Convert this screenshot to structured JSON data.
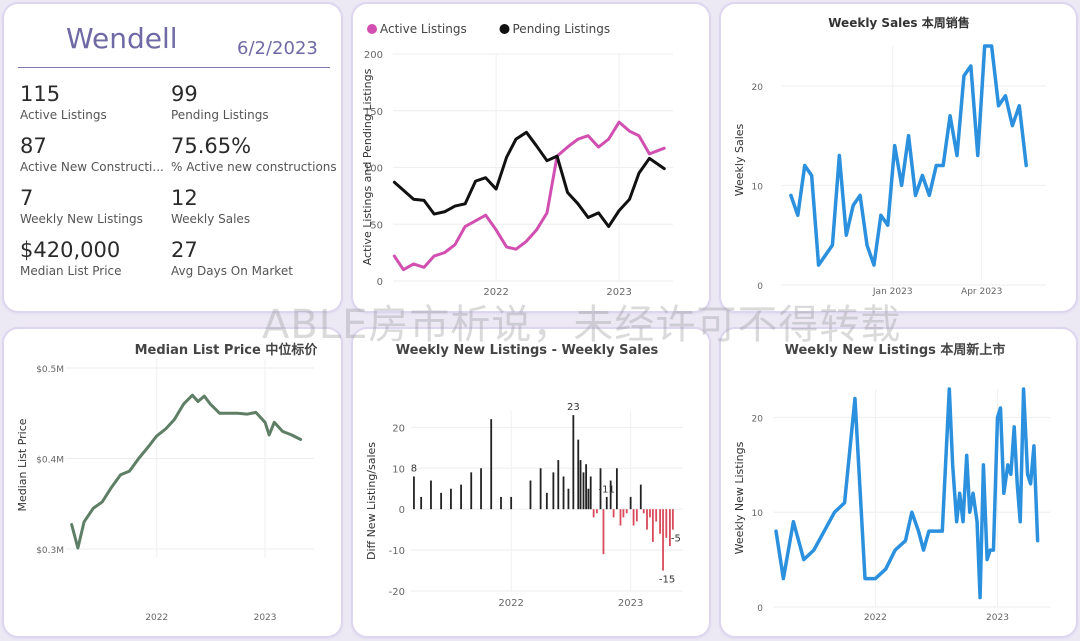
{
  "kpi": {
    "title": "Wendell",
    "date": "6/2/2023",
    "items": [
      {
        "value": "115",
        "label": "Active Listings"
      },
      {
        "value": "99",
        "label": "Pending Listings"
      },
      {
        "value": "87",
        "label": "Active New Constructi..."
      },
      {
        "value": "75.65%",
        "label": "% Active new constructions"
      },
      {
        "value": "7",
        "label": "Weekly New Listings"
      },
      {
        "value": "12",
        "label": "Weekly Sales"
      },
      {
        "value": "$420,000",
        "label": "Median List Price"
      },
      {
        "value": "27",
        "label": "Avg Days On Market"
      }
    ]
  },
  "watermark": "ABLE房市析说，未经许可不得转载",
  "colors": {
    "active": "#d14fb0",
    "pending": "#111111",
    "blue": "#2b90de",
    "green": "#5e7f66",
    "pos_bar": "#222222",
    "neg_bar": "#d94a5a",
    "kpi_accent": "#6f6aa6"
  },
  "chart_data": [
    {
      "type": "line",
      "title": "",
      "xlabel": "",
      "ylabel": "Active Listings and Pending Listings",
      "ylim": [
        0,
        200
      ],
      "yticks": [
        "0",
        "50",
        "100",
        "150",
        "200"
      ],
      "xticks": [
        "2022",
        "2023"
      ],
      "x_range": [
        "2021-03-01",
        "2023-06-10"
      ],
      "legend": "top-left",
      "series": [
        {
          "name": "Active Listings",
          "color": "#d14fb0",
          "points": [
            [
              "2021-03-05",
              22
            ],
            [
              "2021-04-01",
              10
            ],
            [
              "2021-05-01",
              15
            ],
            [
              "2021-06-01",
              12
            ],
            [
              "2021-07-01",
              22
            ],
            [
              "2021-08-01",
              25
            ],
            [
              "2021-09-01",
              32
            ],
            [
              "2021-10-01",
              48
            ],
            [
              "2021-11-01",
              53
            ],
            [
              "2021-12-01",
              58
            ],
            [
              "2022-01-01",
              45
            ],
            [
              "2022-02-01",
              30
            ],
            [
              "2022-03-01",
              28
            ],
            [
              "2022-04-01",
              35
            ],
            [
              "2022-05-01",
              45
            ],
            [
              "2022-06-01",
              60
            ],
            [
              "2022-07-01",
              110
            ],
            [
              "2022-08-01",
              118
            ],
            [
              "2022-09-01",
              125
            ],
            [
              "2022-10-01",
              128
            ],
            [
              "2022-11-01",
              118
            ],
            [
              "2022-12-01",
              125
            ],
            [
              "2023-01-01",
              140
            ],
            [
              "2023-02-01",
              132
            ],
            [
              "2023-03-01",
              128
            ],
            [
              "2023-04-01",
              112
            ],
            [
              "2023-05-15",
              117
            ]
          ]
        },
        {
          "name": "Pending Listings",
          "color": "#111111",
          "points": [
            [
              "2021-03-05",
              87
            ],
            [
              "2021-04-01",
              80
            ],
            [
              "2021-05-01",
              72
            ],
            [
              "2021-06-01",
              71
            ],
            [
              "2021-07-01",
              59
            ],
            [
              "2021-08-01",
              61
            ],
            [
              "2021-09-01",
              66
            ],
            [
              "2021-10-01",
              68
            ],
            [
              "2021-11-01",
              88
            ],
            [
              "2021-12-01",
              91
            ],
            [
              "2022-01-01",
              81
            ],
            [
              "2022-02-01",
              109
            ],
            [
              "2022-03-01",
              125
            ],
            [
              "2022-04-01",
              131
            ],
            [
              "2022-05-01",
              119
            ],
            [
              "2022-06-01",
              106
            ],
            [
              "2022-07-01",
              110
            ],
            [
              "2022-08-01",
              78
            ],
            [
              "2022-09-01",
              68
            ],
            [
              "2022-10-01",
              56
            ],
            [
              "2022-11-01",
              60
            ],
            [
              "2022-12-01",
              48
            ],
            [
              "2023-01-01",
              62
            ],
            [
              "2023-02-01",
              72
            ],
            [
              "2023-03-01",
              95
            ],
            [
              "2023-04-01",
              108
            ],
            [
              "2023-05-15",
              99
            ]
          ]
        }
      ]
    },
    {
      "type": "line",
      "title": "Weekly Sales 本周销售",
      "xlabel": "",
      "ylabel": "Weekly Sales",
      "ylim": [
        0,
        24
      ],
      "yticks": [
        "0",
        "10",
        "20"
      ],
      "xticks": [
        "Jan 2023",
        "Apr 2023"
      ],
      "x_range": [
        "2022-09-10",
        "2023-06-05"
      ],
      "series": [
        {
          "name": "Weekly Sales",
          "color": "#2b90de",
          "points": [
            [
              "2022-09-20",
              9
            ],
            [
              "2022-09-27",
              7
            ],
            [
              "2022-10-04",
              12
            ],
            [
              "2022-10-11",
              11
            ],
            [
              "2022-10-18",
              2
            ],
            [
              "2022-10-25",
              3
            ],
            [
              "2022-11-01",
              4
            ],
            [
              "2022-11-08",
              13
            ],
            [
              "2022-11-15",
              5
            ],
            [
              "2022-11-22",
              8
            ],
            [
              "2022-11-29",
              9
            ],
            [
              "2022-12-06",
              4
            ],
            [
              "2022-12-13",
              2
            ],
            [
              "2022-12-20",
              7
            ],
            [
              "2022-12-27",
              6
            ],
            [
              "2023-01-03",
              14
            ],
            [
              "2023-01-10",
              10
            ],
            [
              "2023-01-17",
              15
            ],
            [
              "2023-01-24",
              9
            ],
            [
              "2023-01-31",
              11
            ],
            [
              "2023-02-07",
              9
            ],
            [
              "2023-02-14",
              12
            ],
            [
              "2023-02-21",
              12
            ],
            [
              "2023-02-28",
              17
            ],
            [
              "2023-03-07",
              13
            ],
            [
              "2023-03-14",
              21
            ],
            [
              "2023-03-21",
              22
            ],
            [
              "2023-03-28",
              13
            ],
            [
              "2023-04-04",
              24
            ],
            [
              "2023-04-11",
              24
            ],
            [
              "2023-04-18",
              18
            ],
            [
              "2023-04-25",
              19
            ],
            [
              "2023-05-02",
              16
            ],
            [
              "2023-05-09",
              18
            ],
            [
              "2023-05-16",
              12
            ]
          ]
        }
      ]
    },
    {
      "type": "line",
      "title": "Median List Price 中位标价",
      "xlabel": "",
      "ylabel": "Median List Price",
      "ylim": [
        290000,
        510000
      ],
      "yticks": [
        "$0.3M",
        "$0.4M",
        "$0.5M"
      ],
      "xticks": [
        "2022",
        "2023"
      ],
      "x_range": [
        "2021-03-01",
        "2023-06-15"
      ],
      "series": [
        {
          "name": "Median List Price",
          "color": "#5e7f66",
          "points": [
            [
              "2021-03-20",
              327000
            ],
            [
              "2021-04-10",
              301000
            ],
            [
              "2021-05-01",
              330000
            ],
            [
              "2021-06-01",
              345000
            ],
            [
              "2021-07-01",
              352000
            ],
            [
              "2021-08-01",
              368000
            ],
            [
              "2021-09-01",
              382000
            ],
            [
              "2021-10-01",
              386000
            ],
            [
              "2021-11-01",
              400000
            ],
            [
              "2021-12-01",
              412000
            ],
            [
              "2022-01-01",
              425000
            ],
            [
              "2022-02-01",
              433000
            ],
            [
              "2022-03-01",
              443000
            ],
            [
              "2022-04-01",
              460000
            ],
            [
              "2022-05-01",
              470000
            ],
            [
              "2022-05-20",
              463000
            ],
            [
              "2022-06-10",
              469000
            ],
            [
              "2022-07-01",
              460000
            ],
            [
              "2022-08-01",
              450000
            ],
            [
              "2022-09-01",
              450000
            ],
            [
              "2022-10-01",
              450000
            ],
            [
              "2022-11-01",
              449000
            ],
            [
              "2022-12-01",
              451000
            ],
            [
              "2023-01-01",
              440000
            ],
            [
              "2023-01-15",
              426000
            ],
            [
              "2023-02-01",
              440000
            ],
            [
              "2023-03-01",
              430000
            ],
            [
              "2023-04-01",
              426000
            ],
            [
              "2023-05-01",
              421000
            ]
          ]
        }
      ]
    },
    {
      "type": "bar",
      "title": "Weekly New Listings - Weekly Sales",
      "xlabel": "",
      "ylabel": "Diff New Listing/sales",
      "ylim": [
        -20,
        24
      ],
      "yticks": [
        "-20",
        "-10",
        "0",
        "10",
        "20"
      ],
      "xticks": [
        "2022",
        "2023"
      ],
      "x_range": [
        "2021-03-01",
        "2023-06-10"
      ],
      "data_labels": [
        "8",
        "23",
        "-11",
        "-5",
        "-15"
      ],
      "bars": [
        [
          "2021-03-10",
          8
        ],
        [
          "2021-04-01",
          3
        ],
        [
          "2021-05-01",
          7
        ],
        [
          "2021-06-01",
          4
        ],
        [
          "2021-07-01",
          5
        ],
        [
          "2021-08-01",
          6
        ],
        [
          "2021-09-01",
          9
        ],
        [
          "2021-10-01",
          10
        ],
        [
          "2021-11-01",
          22
        ],
        [
          "2021-12-01",
          3
        ],
        [
          "2022-01-01",
          3
        ],
        [
          "2022-03-01",
          7
        ],
        [
          "2022-04-01",
          10
        ],
        [
          "2022-04-20",
          4
        ],
        [
          "2022-05-10",
          9
        ],
        [
          "2022-05-25",
          12
        ],
        [
          "2022-06-10",
          8
        ],
        [
          "2022-06-25",
          5
        ],
        [
          "2022-07-10",
          23
        ],
        [
          "2022-07-25",
          17
        ],
        [
          "2022-08-01",
          12
        ],
        [
          "2022-08-10",
          9
        ],
        [
          "2022-08-18",
          11
        ],
        [
          "2022-08-25",
          5
        ],
        [
          "2022-09-01",
          8
        ],
        [
          "2022-09-10",
          -2
        ],
        [
          "2022-09-20",
          -1
        ],
        [
          "2022-10-01",
          10
        ],
        [
          "2022-10-10",
          -11
        ],
        [
          "2022-10-20",
          3
        ],
        [
          "2022-11-01",
          7
        ],
        [
          "2022-11-10",
          -2
        ],
        [
          "2022-11-20",
          10
        ],
        [
          "2022-12-01",
          -4
        ],
        [
          "2022-12-10",
          -2
        ],
        [
          "2022-12-20",
          -1
        ],
        [
          "2023-01-01",
          3
        ],
        [
          "2023-01-10",
          -4
        ],
        [
          "2023-01-20",
          -3
        ],
        [
          "2023-02-01",
          6
        ],
        [
          "2023-02-10",
          -1
        ],
        [
          "2023-02-20",
          -5
        ],
        [
          "2023-03-01",
          -2
        ],
        [
          "2023-03-10",
          -8
        ],
        [
          "2023-03-20",
          -3
        ],
        [
          "2023-04-01",
          -6
        ],
        [
          "2023-04-10",
          -15
        ],
        [
          "2023-04-20",
          -7
        ],
        [
          "2023-05-01",
          -9
        ],
        [
          "2023-05-10",
          -5
        ]
      ]
    },
    {
      "type": "line",
      "title": "Weekly New Listings 本周新上市",
      "xlabel": "",
      "ylabel": "Weekly New Listings",
      "ylim": [
        0,
        23
      ],
      "yticks": [
        "0",
        "10",
        "20"
      ],
      "xticks": [
        "2022",
        "2023"
      ],
      "x_range": [
        "2021-03-01",
        "2023-06-10"
      ],
      "series": [
        {
          "name": "Weekly New Listings",
          "color": "#2b90de",
          "points": [
            [
              "2021-03-10",
              8
            ],
            [
              "2021-04-01",
              3
            ],
            [
              "2021-05-01",
              9
            ],
            [
              "2021-06-01",
              5
            ],
            [
              "2021-07-01",
              6
            ],
            [
              "2021-08-01",
              8
            ],
            [
              "2021-09-01",
              10
            ],
            [
              "2021-10-01",
              11
            ],
            [
              "2021-11-01",
              22
            ],
            [
              "2021-12-01",
              3
            ],
            [
              "2022-01-01",
              3
            ],
            [
              "2022-02-01",
              4
            ],
            [
              "2022-03-01",
              6
            ],
            [
              "2022-04-01",
              7
            ],
            [
              "2022-04-20",
              10
            ],
            [
              "2022-05-10",
              8
            ],
            [
              "2022-05-25",
              6
            ],
            [
              "2022-06-10",
              8
            ],
            [
              "2022-07-01",
              8
            ],
            [
              "2022-07-20",
              8
            ],
            [
              "2022-08-10",
              23
            ],
            [
              "2022-08-20",
              15
            ],
            [
              "2022-09-01",
              9
            ],
            [
              "2022-09-10",
              12
            ],
            [
              "2022-09-20",
              9
            ],
            [
              "2022-10-01",
              16
            ],
            [
              "2022-10-10",
              10
            ],
            [
              "2022-10-20",
              12
            ],
            [
              "2022-11-01",
              9
            ],
            [
              "2022-11-10",
              1
            ],
            [
              "2022-11-20",
              15
            ],
            [
              "2022-12-01",
              5
            ],
            [
              "2022-12-10",
              6
            ],
            [
              "2022-12-20",
              6
            ],
            [
              "2023-01-01",
              20
            ],
            [
              "2023-01-10",
              21
            ],
            [
              "2023-01-20",
              12
            ],
            [
              "2023-02-01",
              15
            ],
            [
              "2023-02-10",
              14
            ],
            [
              "2023-02-20",
              19
            ],
            [
              "2023-03-01",
              13
            ],
            [
              "2023-03-10",
              9
            ],
            [
              "2023-03-20",
              23
            ],
            [
              "2023-04-01",
              14
            ],
            [
              "2023-04-10",
              13
            ],
            [
              "2023-04-20",
              17
            ],
            [
              "2023-05-01",
              7
            ]
          ]
        }
      ]
    }
  ]
}
